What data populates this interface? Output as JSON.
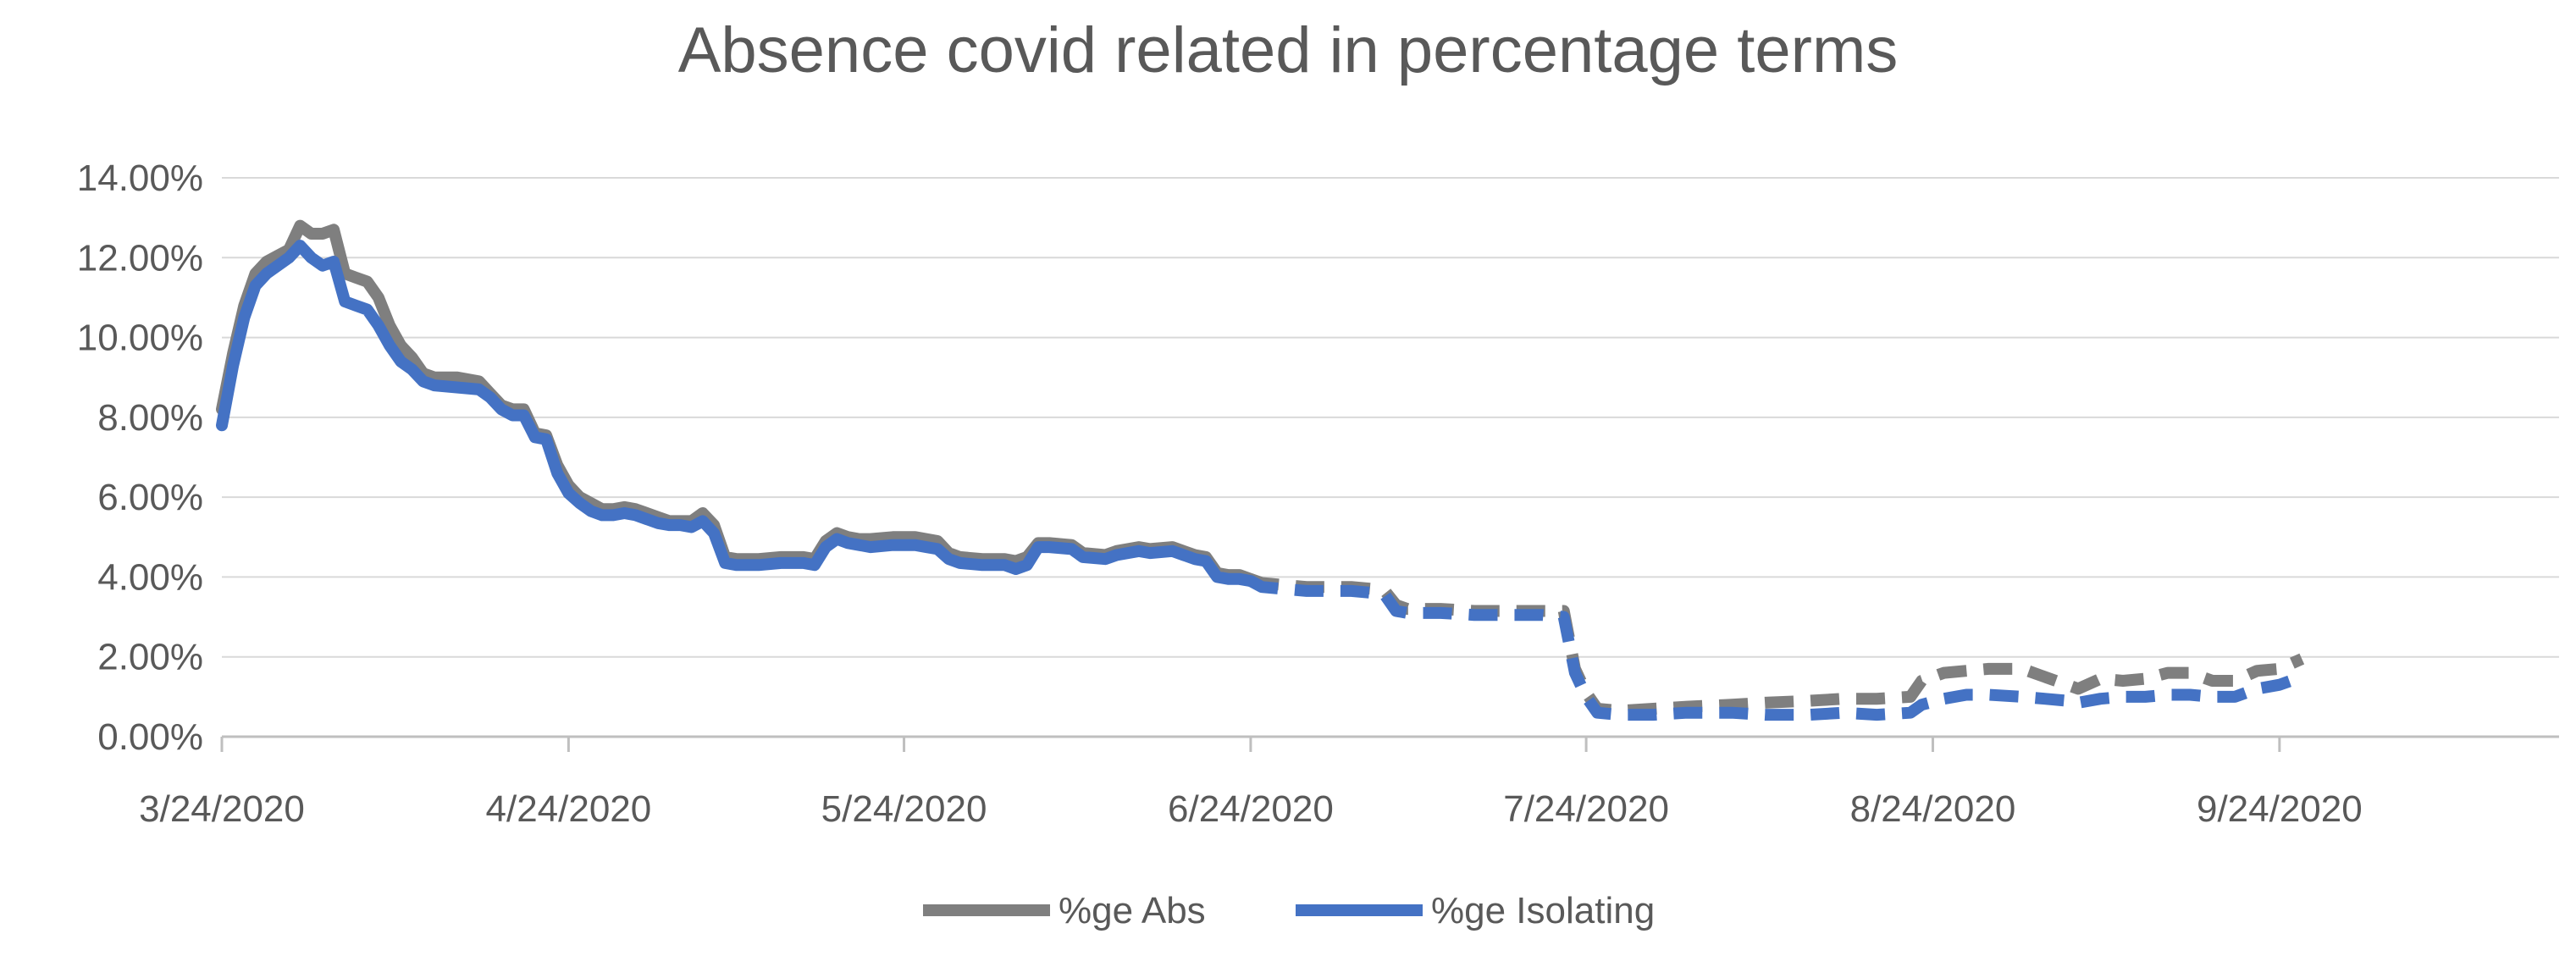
{
  "chart_data": {
    "type": "line",
    "title": "Absence covid related in percentage terms",
    "xlabel": "",
    "ylabel": "",
    "x_tick_labels": [
      "3/24/2020",
      "4/24/2020",
      "5/24/2020",
      "6/24/2020",
      "7/24/2020",
      "8/24/2020",
      "9/24/2020"
    ],
    "x_tick_days": [
      0,
      31,
      61,
      92,
      122,
      153,
      184
    ],
    "y_tick_labels": [
      "0.00%",
      "2.00%",
      "4.00%",
      "6.00%",
      "8.00%",
      "10.00%",
      "12.00%",
      "14.00%"
    ],
    "y_tick_values": [
      0,
      2,
      4,
      6,
      8,
      10,
      12,
      14
    ],
    "xlim_days": [
      0,
      209
    ],
    "ylim": [
      0,
      14
    ],
    "grid": "horizontal",
    "legend_position": "bottom",
    "series": [
      {
        "name": "%ge Abs",
        "color": "#7f7f7f",
        "solid_until_day": 92,
        "points": [
          [
            0,
            8.2
          ],
          [
            1,
            9.6
          ],
          [
            2,
            10.8
          ],
          [
            3,
            11.6
          ],
          [
            4,
            11.9
          ],
          [
            5,
            12.05
          ],
          [
            6,
            12.2
          ],
          [
            7,
            12.8
          ],
          [
            8,
            12.6
          ],
          [
            9,
            12.6
          ],
          [
            10,
            12.7
          ],
          [
            11,
            11.6
          ],
          [
            12,
            11.5
          ],
          [
            13,
            11.4
          ],
          [
            14,
            11.0
          ],
          [
            15,
            10.3
          ],
          [
            16,
            9.8
          ],
          [
            17,
            9.5
          ],
          [
            18,
            9.1
          ],
          [
            19,
            9.0
          ],
          [
            21,
            9.0
          ],
          [
            23,
            8.9
          ],
          [
            24,
            8.6
          ],
          [
            25,
            8.3
          ],
          [
            26,
            8.2
          ],
          [
            27,
            8.2
          ],
          [
            28,
            7.6
          ],
          [
            29,
            7.55
          ],
          [
            30,
            6.8
          ],
          [
            31,
            6.3
          ],
          [
            32,
            6.0
          ],
          [
            33,
            5.85
          ],
          [
            34,
            5.7
          ],
          [
            35,
            5.7
          ],
          [
            36,
            5.75
          ],
          [
            37,
            5.7
          ],
          [
            38,
            5.6
          ],
          [
            39,
            5.5
          ],
          [
            40,
            5.4
          ],
          [
            41,
            5.4
          ],
          [
            42,
            5.4
          ],
          [
            43,
            5.6
          ],
          [
            44,
            5.3
          ],
          [
            45,
            4.5
          ],
          [
            46,
            4.45
          ],
          [
            48,
            4.45
          ],
          [
            50,
            4.5
          ],
          [
            52,
            4.5
          ],
          [
            53,
            4.45
          ],
          [
            54,
            4.9
          ],
          [
            55,
            5.1
          ],
          [
            56,
            5.0
          ],
          [
            57,
            4.95
          ],
          [
            58,
            4.95
          ],
          [
            60,
            5.0
          ],
          [
            62,
            5.0
          ],
          [
            63,
            4.95
          ],
          [
            64,
            4.9
          ],
          [
            65,
            4.6
          ],
          [
            66,
            4.5
          ],
          [
            68,
            4.45
          ],
          [
            70,
            4.45
          ],
          [
            71,
            4.4
          ],
          [
            72,
            4.5
          ],
          [
            73,
            4.85
          ],
          [
            74,
            4.85
          ],
          [
            76,
            4.8
          ],
          [
            77,
            4.6
          ],
          [
            79,
            4.55
          ],
          [
            80,
            4.65
          ],
          [
            82,
            4.75
          ],
          [
            83,
            4.7
          ],
          [
            85,
            4.75
          ],
          [
            86,
            4.65
          ],
          [
            87,
            4.55
          ],
          [
            88,
            4.5
          ],
          [
            89,
            4.1
          ],
          [
            90,
            4.05
          ],
          [
            91,
            4.05
          ],
          [
            92,
            3.95
          ],
          [
            93,
            3.85
          ],
          [
            95,
            3.8
          ],
          [
            97,
            3.75
          ],
          [
            99,
            3.75
          ],
          [
            101,
            3.75
          ],
          [
            103,
            3.7
          ],
          [
            104,
            3.65
          ],
          [
            105,
            3.3
          ],
          [
            106,
            3.2
          ],
          [
            109,
            3.2
          ],
          [
            112,
            3.15
          ],
          [
            115,
            3.15
          ],
          [
            118,
            3.15
          ],
          [
            120,
            3.15
          ],
          [
            121,
            1.7
          ],
          [
            122,
            1.1
          ],
          [
            123,
            0.7
          ],
          [
            125,
            0.65
          ],
          [
            128,
            0.7
          ],
          [
            131,
            0.75
          ],
          [
            135,
            0.8
          ],
          [
            138,
            0.85
          ],
          [
            142,
            0.9
          ],
          [
            145,
            0.95
          ],
          [
            148,
            0.95
          ],
          [
            151,
            1.0
          ],
          [
            152,
            1.4
          ],
          [
            154,
            1.6
          ],
          [
            156,
            1.65
          ],
          [
            158,
            1.7
          ],
          [
            161,
            1.7
          ],
          [
            163,
            1.5
          ],
          [
            165,
            1.3
          ],
          [
            166,
            1.2
          ],
          [
            168,
            1.45
          ],
          [
            170,
            1.4
          ],
          [
            172,
            1.45
          ],
          [
            174,
            1.6
          ],
          [
            176,
            1.6
          ],
          [
            178,
            1.4
          ],
          [
            180,
            1.4
          ],
          [
            182,
            1.65
          ],
          [
            184,
            1.7
          ],
          [
            186,
            1.95
          ]
        ]
      },
      {
        "name": "%ge Isolating",
        "color": "#4472c4",
        "solid_until_day": 92,
        "points": [
          [
            0,
            7.8
          ],
          [
            1,
            9.3
          ],
          [
            2,
            10.5
          ],
          [
            3,
            11.3
          ],
          [
            4,
            11.6
          ],
          [
            5,
            11.8
          ],
          [
            6,
            12.0
          ],
          [
            7,
            12.3
          ],
          [
            8,
            12.0
          ],
          [
            9,
            11.8
          ],
          [
            10,
            11.9
          ],
          [
            11,
            10.9
          ],
          [
            12,
            10.8
          ],
          [
            13,
            10.7
          ],
          [
            14,
            10.3
          ],
          [
            15,
            9.8
          ],
          [
            16,
            9.4
          ],
          [
            17,
            9.2
          ],
          [
            18,
            8.9
          ],
          [
            19,
            8.8
          ],
          [
            21,
            8.75
          ],
          [
            23,
            8.7
          ],
          [
            24,
            8.5
          ],
          [
            25,
            8.2
          ],
          [
            26,
            8.05
          ],
          [
            27,
            8.05
          ],
          [
            28,
            7.5
          ],
          [
            29,
            7.45
          ],
          [
            30,
            6.6
          ],
          [
            31,
            6.1
          ],
          [
            32,
            5.85
          ],
          [
            33,
            5.65
          ],
          [
            34,
            5.55
          ],
          [
            35,
            5.55
          ],
          [
            36,
            5.6
          ],
          [
            37,
            5.55
          ],
          [
            38,
            5.45
          ],
          [
            39,
            5.35
          ],
          [
            40,
            5.3
          ],
          [
            41,
            5.3
          ],
          [
            42,
            5.25
          ],
          [
            43,
            5.4
          ],
          [
            44,
            5.1
          ],
          [
            45,
            4.35
          ],
          [
            46,
            4.3
          ],
          [
            48,
            4.3
          ],
          [
            50,
            4.35
          ],
          [
            52,
            4.35
          ],
          [
            53,
            4.3
          ],
          [
            54,
            4.75
          ],
          [
            55,
            4.95
          ],
          [
            56,
            4.85
          ],
          [
            57,
            4.8
          ],
          [
            58,
            4.75
          ],
          [
            60,
            4.8
          ],
          [
            62,
            4.8
          ],
          [
            63,
            4.75
          ],
          [
            64,
            4.7
          ],
          [
            65,
            4.45
          ],
          [
            66,
            4.35
          ],
          [
            68,
            4.3
          ],
          [
            70,
            4.3
          ],
          [
            71,
            4.2
          ],
          [
            72,
            4.3
          ],
          [
            73,
            4.75
          ],
          [
            74,
            4.75
          ],
          [
            76,
            4.7
          ],
          [
            77,
            4.5
          ],
          [
            79,
            4.45
          ],
          [
            80,
            4.55
          ],
          [
            82,
            4.65
          ],
          [
            83,
            4.6
          ],
          [
            85,
            4.65
          ],
          [
            86,
            4.55
          ],
          [
            87,
            4.45
          ],
          [
            88,
            4.4
          ],
          [
            89,
            4.0
          ],
          [
            90,
            3.95
          ],
          [
            91,
            3.95
          ],
          [
            92,
            3.9
          ],
          [
            93,
            3.75
          ],
          [
            95,
            3.7
          ],
          [
            97,
            3.65
          ],
          [
            99,
            3.65
          ],
          [
            101,
            3.65
          ],
          [
            103,
            3.6
          ],
          [
            104,
            3.55
          ],
          [
            105,
            3.15
          ],
          [
            106,
            3.1
          ],
          [
            109,
            3.1
          ],
          [
            112,
            3.05
          ],
          [
            115,
            3.05
          ],
          [
            118,
            3.05
          ],
          [
            120,
            3.0
          ],
          [
            121,
            1.6
          ],
          [
            122,
            1.0
          ],
          [
            123,
            0.6
          ],
          [
            125,
            0.55
          ],
          [
            128,
            0.55
          ],
          [
            131,
            0.6
          ],
          [
            135,
            0.6
          ],
          [
            138,
            0.55
          ],
          [
            142,
            0.55
          ],
          [
            145,
            0.6
          ],
          [
            148,
            0.55
          ],
          [
            151,
            0.6
          ],
          [
            152,
            0.8
          ],
          [
            154,
            0.95
          ],
          [
            156,
            1.05
          ],
          [
            158,
            1.05
          ],
          [
            161,
            1.0
          ],
          [
            163,
            0.95
          ],
          [
            165,
            0.9
          ],
          [
            166,
            0.85
          ],
          [
            168,
            0.95
          ],
          [
            170,
            1.0
          ],
          [
            172,
            1.0
          ],
          [
            174,
            1.05
          ],
          [
            176,
            1.05
          ],
          [
            178,
            1.0
          ],
          [
            180,
            1.0
          ],
          [
            182,
            1.2
          ],
          [
            184,
            1.3
          ],
          [
            186,
            1.5
          ]
        ]
      }
    ]
  }
}
